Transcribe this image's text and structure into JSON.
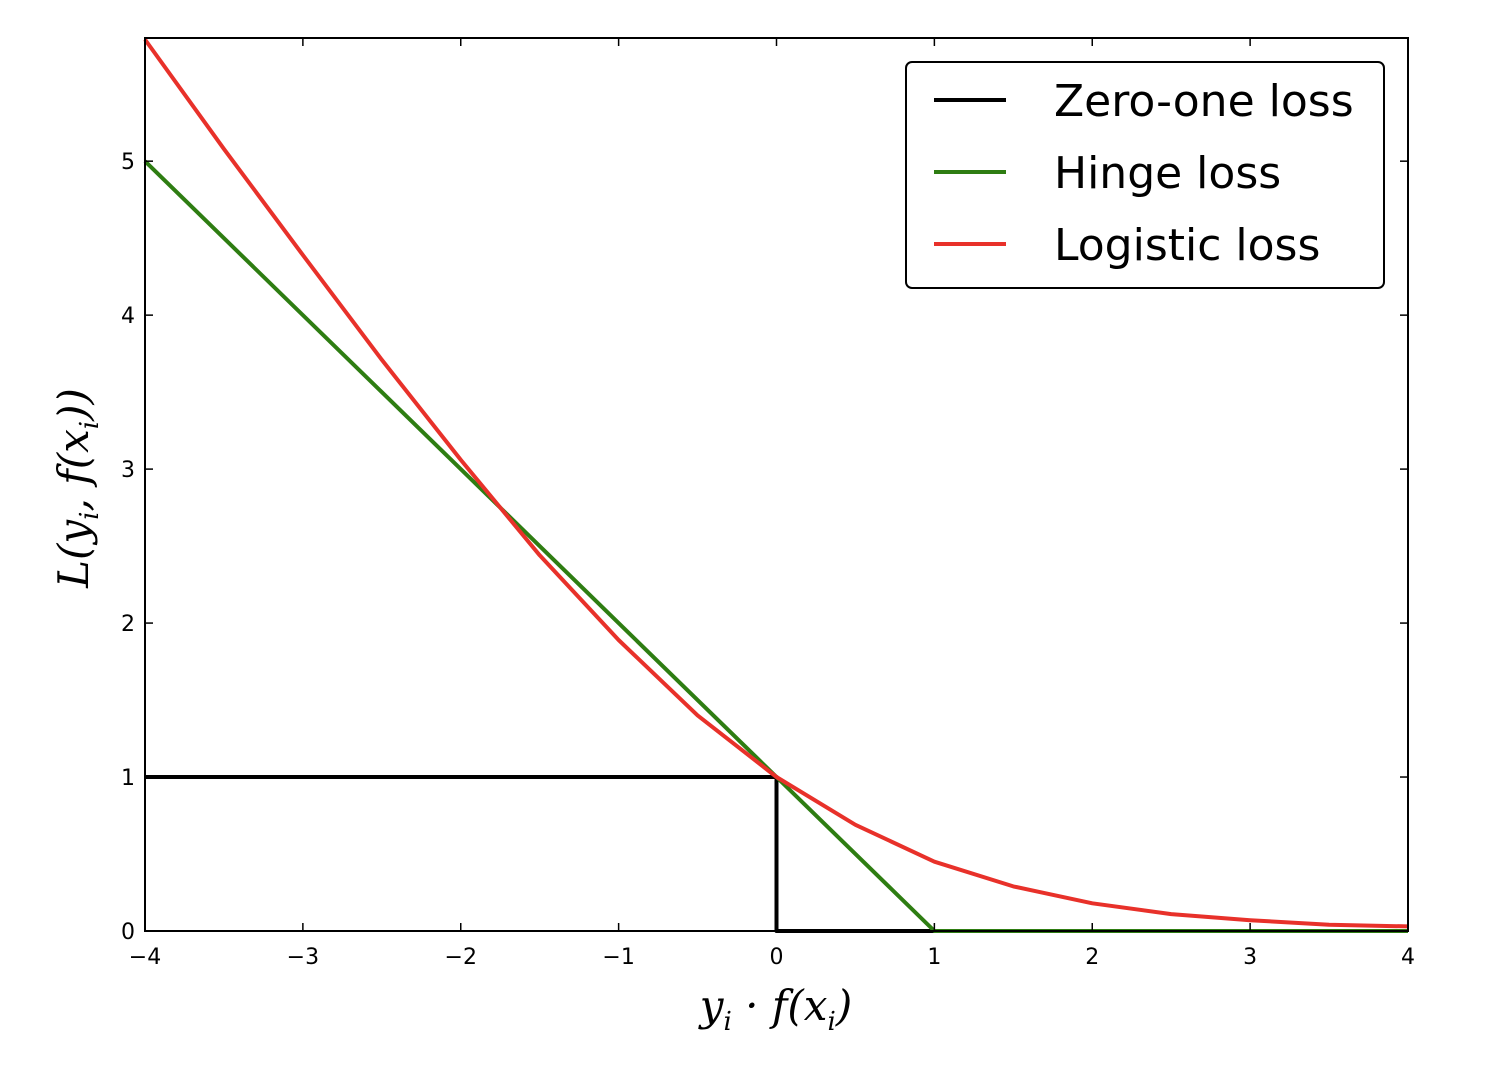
{
  "chart_data": {
    "type": "line",
    "title": "",
    "xlabel": "y_i · f(x_i)",
    "ylabel": "L(y_i, f(x_i))",
    "xlim": [
      -4,
      4
    ],
    "ylim": [
      0,
      5.8
    ],
    "x_ticks": [
      -4,
      -3,
      -2,
      -1,
      0,
      1,
      2,
      3,
      4
    ],
    "x_tick_labels": [
      "−4",
      "−3",
      "−2",
      "−1",
      "0",
      "1",
      "2",
      "3",
      "4"
    ],
    "y_ticks": [
      0,
      1,
      2,
      3,
      4,
      5
    ],
    "y_tick_labels": [
      "0",
      "1",
      "2",
      "3",
      "4",
      "5"
    ],
    "grid": false,
    "legend_position": "top-right",
    "series": [
      {
        "name": "Zero-one loss",
        "color": "#000000",
        "x": [
          -4,
          0,
          0,
          4
        ],
        "y": [
          1,
          1,
          0,
          0
        ]
      },
      {
        "name": "Hinge loss",
        "color": "#2e7d12",
        "x": [
          -4,
          1,
          4
        ],
        "y": [
          5,
          0,
          0
        ]
      },
      {
        "name": "Logistic loss",
        "color": "#e8312a",
        "x": [
          -4,
          -3.5,
          -3,
          -2.5,
          -2,
          -1.5,
          -1,
          -0.5,
          0,
          0.5,
          1,
          1.5,
          2,
          2.5,
          3,
          3.5,
          4
        ],
        "y": [
          5.79,
          5.08,
          4.39,
          3.71,
          3.06,
          2.44,
          1.89,
          1.4,
          1.0,
          0.69,
          0.45,
          0.29,
          0.18,
          0.11,
          0.07,
          0.04,
          0.03
        ]
      }
    ]
  }
}
